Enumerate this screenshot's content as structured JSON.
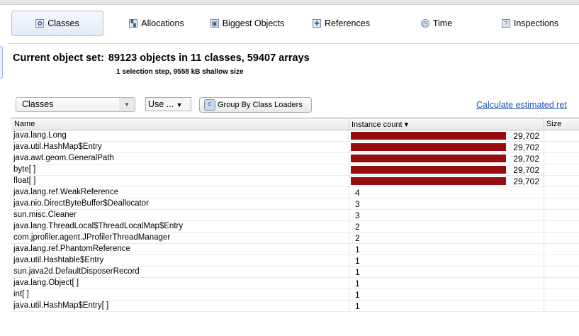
{
  "tabs": [
    {
      "label": "Classes",
      "icon": "classes-icon",
      "active": true
    },
    {
      "label": "Allocations",
      "icon": "allocations-icon"
    },
    {
      "label": "Biggest Objects",
      "icon": "biggest-objects-icon"
    },
    {
      "label": "References",
      "icon": "references-icon"
    },
    {
      "label": "Time",
      "icon": "clock-icon"
    },
    {
      "label": "Inspections",
      "icon": "question-icon"
    }
  ],
  "header": {
    "title_label": "Current object set:",
    "title_value": "89123 objects in 11 classes, 59407 arrays",
    "subtitle": "1 selection step, 9558 kB shallow size"
  },
  "controls": {
    "view_select": "Classes",
    "use_menu": "Use ...",
    "group_button": "Group By Class Loaders",
    "calc_link": "Calculate estimated ret"
  },
  "table": {
    "columns": [
      "Name",
      "Instance count",
      "Size"
    ],
    "sort_indicator": "▾",
    "bar_color": "#970c0c",
    "max_count": 29702,
    "rows": [
      {
        "name": "java.lang.Long",
        "count": 29702,
        "label": "29,702"
      },
      {
        "name": "java.util.HashMap$Entry",
        "count": 29702,
        "label": "29,702"
      },
      {
        "name": "java.awt.geom.GeneralPath",
        "count": 29702,
        "label": "29,702"
      },
      {
        "name": "byte[ ]",
        "count": 29702,
        "label": "29,702"
      },
      {
        "name": "float[ ]",
        "count": 29702,
        "label": "29,702"
      },
      {
        "name": "java.lang.ref.WeakReference",
        "count": 4,
        "label": "4"
      },
      {
        "name": "java.nio.DirectByteBuffer$Deallocator",
        "count": 3,
        "label": "3"
      },
      {
        "name": "sun.misc.Cleaner",
        "count": 3,
        "label": "3"
      },
      {
        "name": "java.lang.ThreadLocal$ThreadLocalMap$Entry",
        "count": 2,
        "label": "2"
      },
      {
        "name": "com.jprofiler.agent.JProfilerThreadManager",
        "count": 2,
        "label": "2"
      },
      {
        "name": "java.lang.ref.PhantomReference",
        "count": 1,
        "label": "1"
      },
      {
        "name": "java.util.Hashtable$Entry",
        "count": 1,
        "label": "1"
      },
      {
        "name": "sun.java2d.DefaultDisposerRecord",
        "count": 1,
        "label": "1"
      },
      {
        "name": "java.lang.Object[ ]",
        "count": 1,
        "label": "1"
      },
      {
        "name": "int[ ]",
        "count": 1,
        "label": "1"
      },
      {
        "name": "java.util.HashMap$Entry[ ]",
        "count": 1,
        "label": "1"
      }
    ]
  }
}
